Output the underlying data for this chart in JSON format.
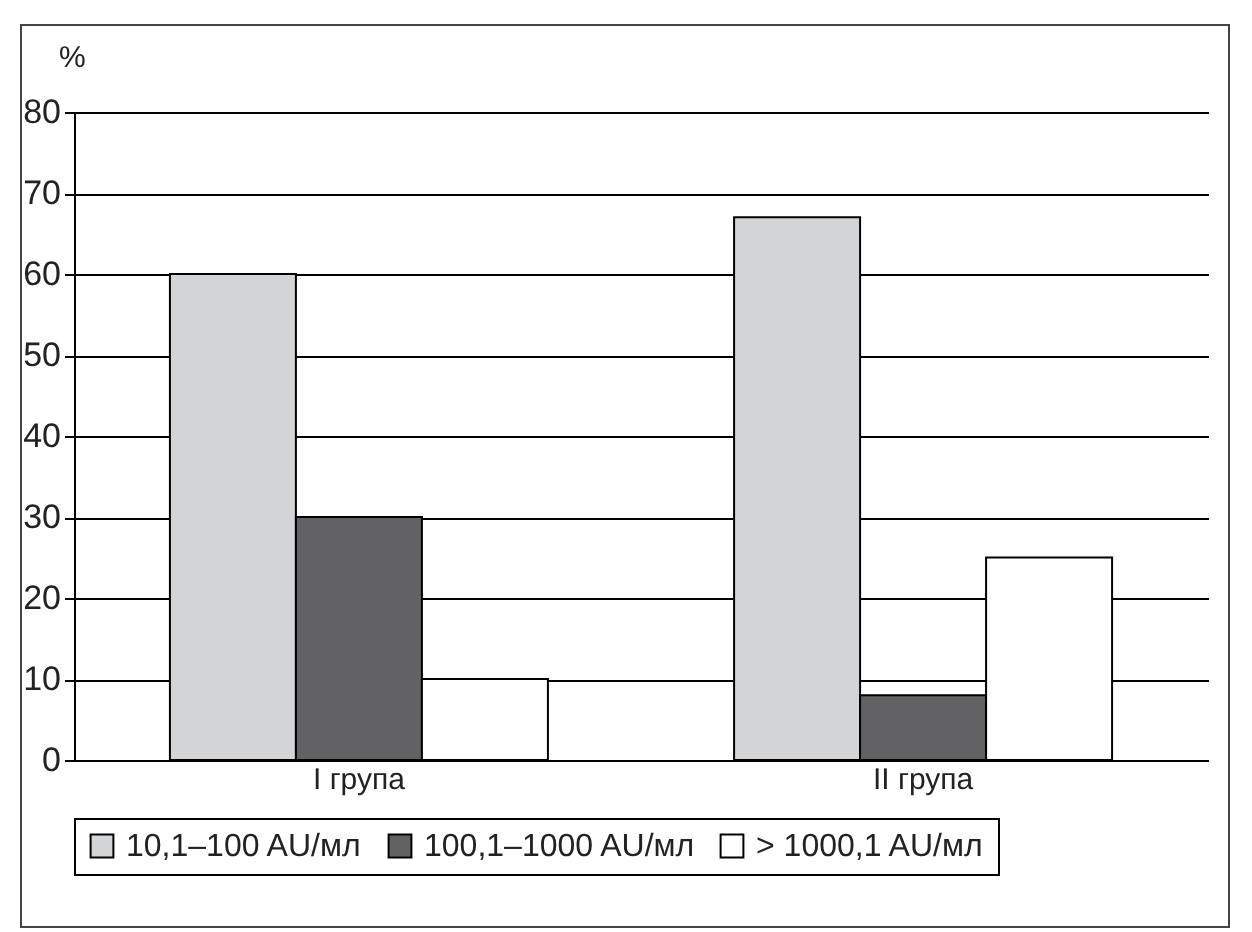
{
  "chart_data": {
    "type": "bar",
    "ylabel": "%",
    "categories": [
      "I група",
      "II група"
    ],
    "series": [
      {
        "name": "10,1–100 AU/мл",
        "color": "#d3d4d6",
        "values": [
          60,
          67
        ]
      },
      {
        "name": "100,1–1000 AU/мл",
        "color": "#626264",
        "values": [
          30,
          8
        ]
      },
      {
        "name": "> 1000,1 AU/мл",
        "color": "#ffffff",
        "values": [
          10,
          25
        ]
      }
    ],
    "ylim": [
      0,
      80
    ],
    "yticks": [
      0,
      10,
      20,
      30,
      40,
      50,
      60,
      70,
      80
    ],
    "grid": "y",
    "legend": "bottom"
  }
}
